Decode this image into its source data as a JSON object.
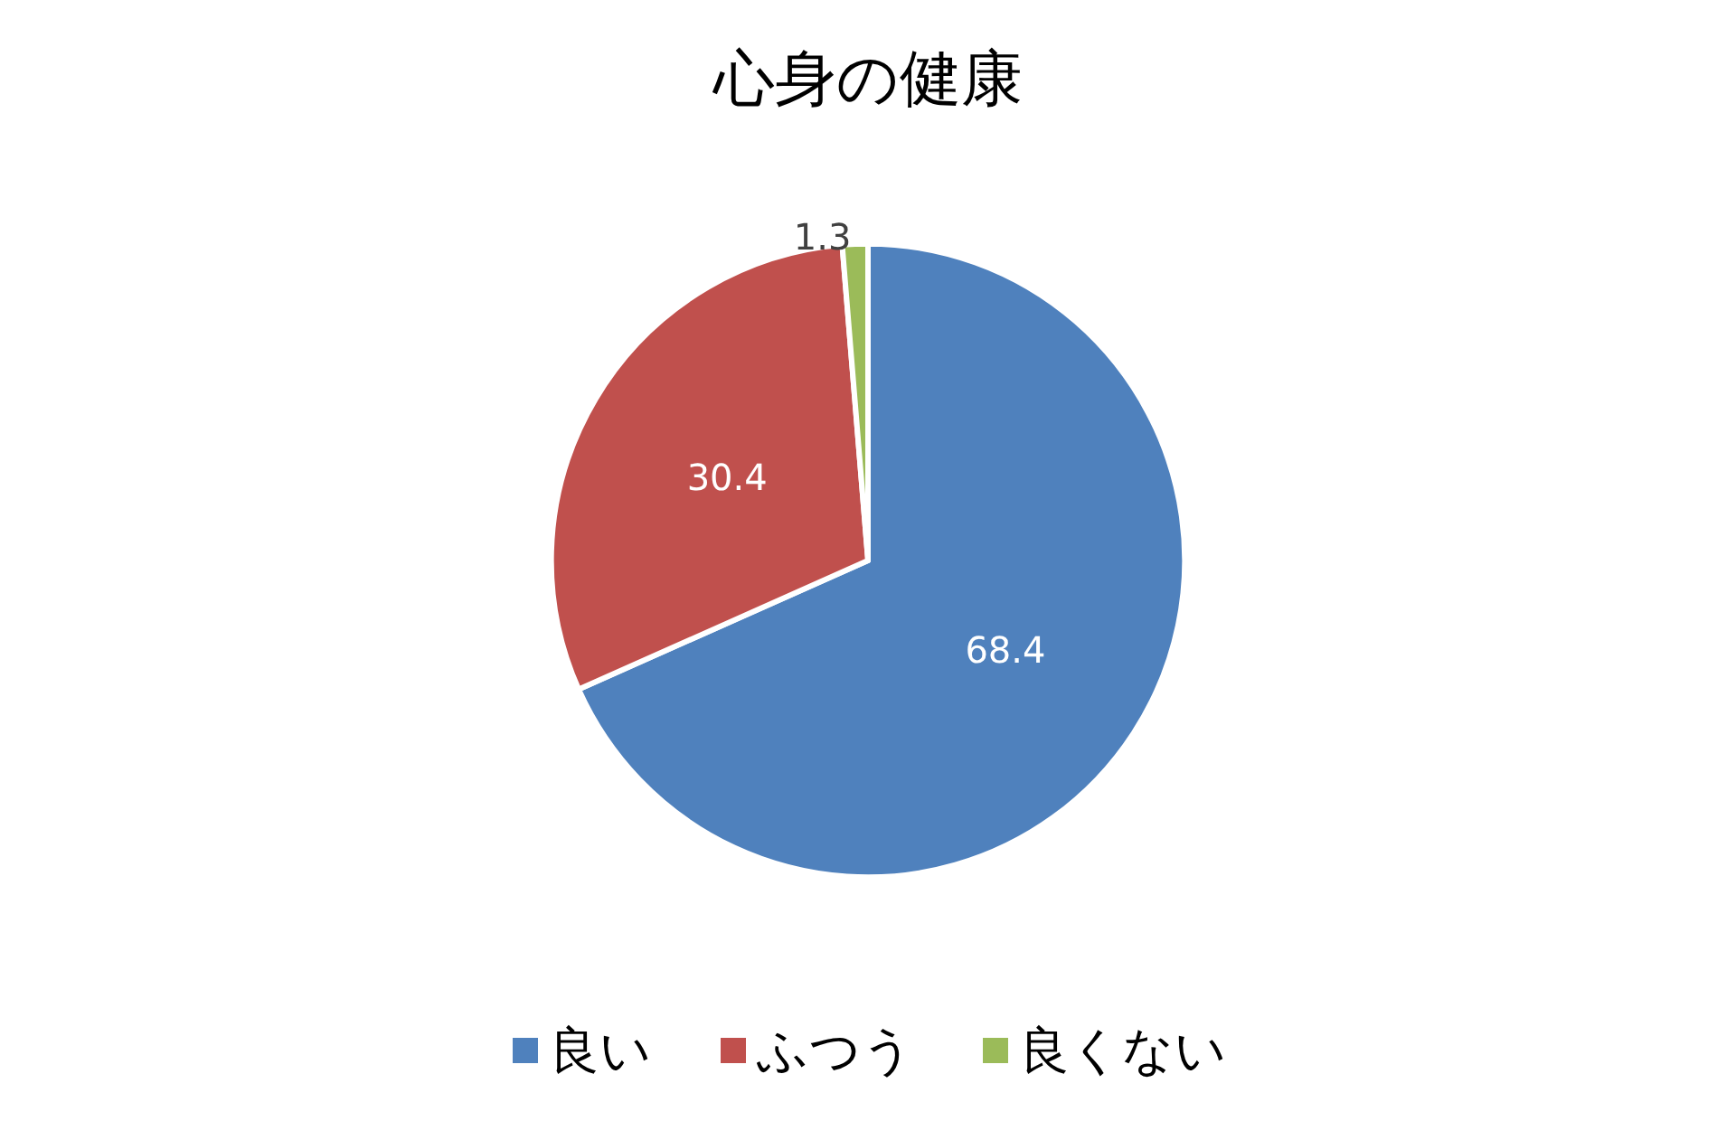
{
  "chart_data": {
    "type": "pie",
    "title": "心身の健康",
    "categories": [
      "良い",
      "ふつう",
      "良くない"
    ],
    "values": [
      68.4,
      30.4,
      1.3
    ],
    "colors": [
      "#4f81bd",
      "#c0504d",
      "#9bbb59"
    ],
    "data_labels": true,
    "legend": "bottom"
  }
}
